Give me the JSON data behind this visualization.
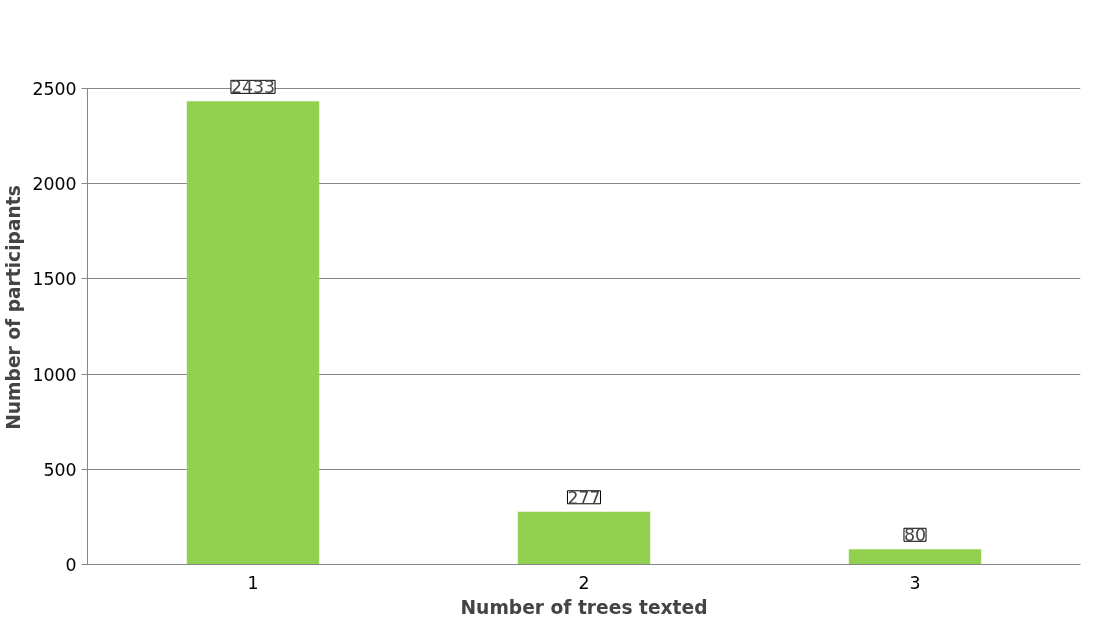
{
  "chart_data": {
    "type": "bar",
    "xlabel": "Number of trees texted",
    "ylabel": "Number of participants",
    "categories": [
      "1",
      "2",
      "3"
    ],
    "values": [
      2433,
      277,
      80
    ],
    "color": "#92d050",
    "ylim": [
      0,
      2500
    ],
    "yticks": [
      0,
      500,
      1000,
      1500,
      2000,
      2500
    ],
    "grid": "y",
    "data_labels": true
  }
}
